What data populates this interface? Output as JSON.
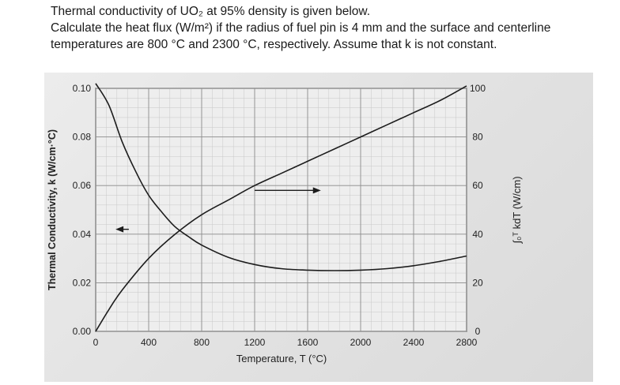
{
  "question": {
    "line1": "Thermal conductivity of UO₂ at 95% density  is given below.",
    "line2": "Calculate the heat flux (W/m²) if the radius of fuel pin is 4 mm and the surface and centerline",
    "line3": "temperatures are 800 °C and 2300 °C, respectively.  Assume that k is not constant."
  },
  "chart_data": {
    "type": "line",
    "xlabel": "Temperature, T (°C)",
    "ylabel": "Thermal Conductivity, k (W/cm·°C)",
    "ylabel_right": "∫₀ᵀ kdT (W/cm)",
    "x_ticks": [
      "0",
      "400",
      "800",
      "1200",
      "1600",
      "2000",
      "2400",
      "2800"
    ],
    "y_ticks_left": [
      "0.00",
      "0.02",
      "0.04",
      "0.06",
      "0.08",
      "0.10"
    ],
    "y_ticks_right": [
      "0",
      "20",
      "40",
      "60",
      "80",
      "100"
    ],
    "xlim": [
      0,
      2800
    ],
    "ylim_left": [
      0,
      0.1
    ],
    "ylim_right": [
      0,
      100
    ],
    "grid": true,
    "series": [
      {
        "axis": "left",
        "x": [
          0,
          100,
          200,
          300,
          400,
          500,
          600,
          700,
          800,
          1000,
          1200,
          1400,
          1600,
          1800,
          2000,
          2200,
          2400,
          2600,
          2800
        ],
        "y": [
          0.102,
          0.093,
          0.078,
          0.066,
          0.056,
          0.049,
          0.043,
          0.039,
          0.0355,
          0.0305,
          0.0275,
          0.0258,
          0.0252,
          0.025,
          0.0252,
          0.0258,
          0.027,
          0.0288,
          0.031
        ]
      },
      {
        "axis": "right",
        "x": [
          0,
          100,
          200,
          400,
          600,
          800,
          1000,
          1200,
          1400,
          1600,
          1800,
          2000,
          2200,
          2400,
          2600,
          2800
        ],
        "y": [
          0,
          9,
          17,
          30,
          40,
          48,
          54,
          60,
          65,
          70,
          75,
          80,
          85,
          90,
          95,
          101
        ]
      }
    ],
    "arrows": [
      {
        "axis": "left",
        "x_start": 250,
        "x_end": 150,
        "y": 0.042
      },
      {
        "axis": "right",
        "x_start": 1200,
        "x_end": 1700,
        "y": 58
      }
    ]
  }
}
